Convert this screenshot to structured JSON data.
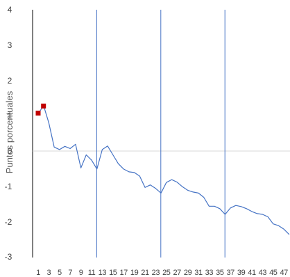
{
  "chart_data": {
    "type": "line",
    "title": "",
    "xlabel": "",
    "ylabel": "Puntos porcentuales",
    "ylim": [
      -3,
      4
    ],
    "yticks": [
      4,
      3,
      2,
      1,
      0,
      -1,
      -2,
      -3
    ],
    "yticks_labels": [
      "4",
      "3",
      "2",
      "1",
      "0",
      "-1",
      "-2",
      "-3"
    ],
    "xlim": [
      1,
      48
    ],
    "xticks": [
      1,
      3,
      5,
      7,
      9,
      11,
      13,
      15,
      17,
      19,
      21,
      23,
      25,
      27,
      29,
      31,
      33,
      35,
      37,
      39,
      41,
      43,
      45,
      47
    ],
    "xticks_labels": [
      "1",
      "3",
      "5",
      "7",
      "9",
      "11",
      "13",
      "15",
      "17",
      "19",
      "21",
      "23",
      "25",
      "27",
      "29",
      "31",
      "33",
      "35",
      "37",
      "39",
      "41",
      "43",
      "45",
      "47"
    ],
    "grid": false,
    "line_color": "#4472c4",
    "marker_color": "#c00000",
    "vertical_lines_x": [
      12,
      24,
      36
    ],
    "series": [
      {
        "x": [
          1,
          2,
          3,
          4,
          5,
          6,
          7,
          8,
          9,
          10,
          11,
          12,
          13,
          14,
          15,
          16,
          17,
          18,
          19,
          20,
          21,
          22,
          23,
          24,
          25,
          26,
          27,
          28,
          29,
          30,
          31,
          32,
          33,
          34,
          35,
          36,
          37,
          38,
          39,
          40,
          41,
          42,
          43,
          44,
          45,
          46,
          47,
          48
        ],
        "values": [
          1.05,
          1.3,
          0.8,
          0.12,
          0.05,
          0.14,
          0.08,
          0.2,
          -0.47,
          -0.1,
          -0.25,
          -0.5,
          0.05,
          0.15,
          -0.1,
          -0.35,
          -0.5,
          -0.58,
          -0.6,
          -0.7,
          -1.02,
          -0.95,
          -1.05,
          -1.18,
          -0.88,
          -0.8,
          -0.87,
          -1.0,
          -1.1,
          -1.15,
          -1.18,
          -1.3,
          -1.55,
          -1.55,
          -1.62,
          -1.78,
          -1.6,
          -1.53,
          -1.56,
          -1.62,
          -1.7,
          -1.76,
          -1.78,
          -1.85,
          -2.05,
          -2.1,
          -2.2,
          -2.35
        ]
      }
    ],
    "markers": [
      {
        "x": 1,
        "y": 1.08
      },
      {
        "x": 2,
        "y": 1.28
      }
    ]
  }
}
